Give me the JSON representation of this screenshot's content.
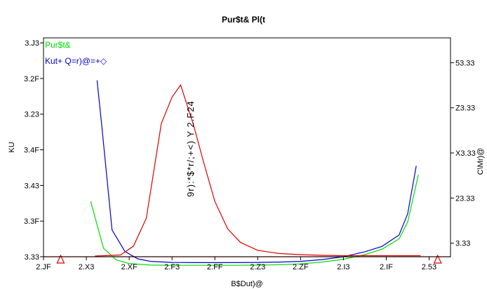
{
  "colors": {
    "series_green": "#00dd00",
    "series_blue": "#0000cc",
    "series_red": "#dd0000",
    "frame": "#000000"
  },
  "chart_data": {
    "type": "line",
    "title": "Pur$t& Pl(t",
    "xlabel": "B$Dut)@",
    "ylabel_left": "KU",
    "ylabel_right": "C\\Mr)@",
    "annotation": "9r):*$*r/;+<)  Y  2.F24",
    "grid": false,
    "legend_position": "top-left",
    "x_ticks": [
      "2.JF",
      "2.X3",
      "2.XF",
      "2.F3",
      "2.FF",
      "2.Z3",
      "2.ZF",
      "2.I3",
      "2.IF",
      "2.53"
    ],
    "y_left_ticks": [
      "3.33",
      "3.3F",
      "3.43",
      "3.4F",
      "3.23",
      "3.2F",
      "3.J3"
    ],
    "y_right_ticks": [
      "3.33",
      "23.33",
      "X3.33",
      "Z3.33",
      "53.33"
    ],
    "x_range": [
      0,
      9.5
    ],
    "y_left_range": [
      0,
      6.14
    ],
    "y_right_range": [
      -0.3,
      4.55
    ],
    "series": [
      {
        "name": "Pur$t&",
        "axis": "left",
        "color_key": "series_green",
        "x": [
          1.1,
          1.4,
          1.7,
          2.0,
          2.5,
          3.0,
          3.5,
          4.0,
          4.5,
          5.0,
          5.5,
          6.0,
          6.5,
          7.0,
          7.5,
          7.9,
          8.3,
          8.5,
          8.75
        ],
        "y": [
          1.55,
          0.24,
          -0.09,
          -0.19,
          -0.235,
          -0.24,
          -0.24,
          -0.24,
          -0.24,
          -0.235,
          -0.225,
          -0.2,
          -0.15,
          -0.07,
          0.06,
          0.21,
          0.5,
          0.97,
          2.3
        ]
      },
      {
        "name": "Kut+ Q=r)@=+◇",
        "axis": "left",
        "color_key": "series_blue",
        "x": [
          1.25,
          1.35,
          1.6,
          1.9,
          2.2,
          2.5,
          3.0,
          3.5,
          4.0,
          4.5,
          5.0,
          5.5,
          6.0,
          6.5,
          7.0,
          7.5,
          7.9,
          8.3,
          8.5,
          8.7
        ],
        "y": [
          4.95,
          3.8,
          0.75,
          0.15,
          -0.06,
          -0.13,
          -0.16,
          -0.165,
          -0.165,
          -0.165,
          -0.16,
          -0.15,
          -0.13,
          -0.08,
          0.0,
          0.14,
          0.29,
          0.61,
          1.2,
          2.55
        ]
      },
      {
        "name": "",
        "axis": "left",
        "color_key": "series_red",
        "x": [
          1.2,
          1.8,
          2.1,
          2.4,
          2.75,
          3.0,
          3.2,
          3.5,
          3.75,
          4.0,
          4.3,
          4.6,
          5.0,
          5.5,
          6.0,
          6.5,
          7.0,
          7.5,
          8.0,
          8.5,
          8.8
        ],
        "y": [
          0.02,
          0.05,
          0.3,
          1.08,
          3.74,
          4.48,
          4.82,
          3.7,
          2.6,
          1.55,
          0.78,
          0.4,
          0.18,
          0.09,
          0.06,
          0.04,
          0.03,
          0.03,
          0.03,
          0.03,
          0.03
        ]
      }
    ],
    "reference_line": {
      "y": 0.0,
      "color_key": "series_red"
    },
    "markers": [
      {
        "x": 0.4,
        "y": -0.02,
        "shape": "triangle",
        "color_key": "series_red"
      },
      {
        "x": 9.2,
        "y": -0.02,
        "shape": "triangle",
        "color_key": "series_red"
      }
    ]
  }
}
